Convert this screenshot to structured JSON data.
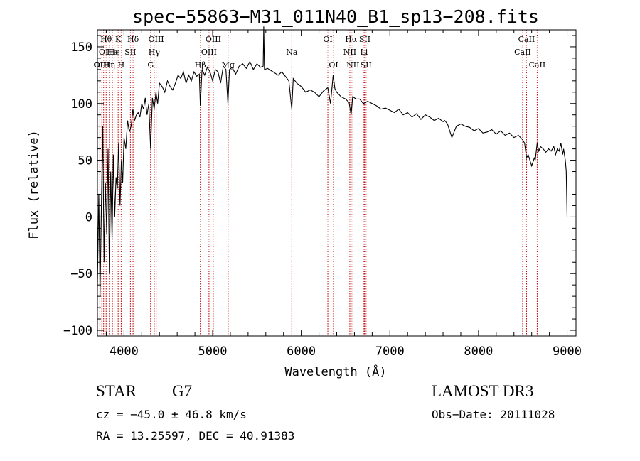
{
  "chart_data": {
    "type": "line",
    "title": "spec−55863−M31_011N40_B1_sp13−208.fits",
    "xlabel": "Wavelength (Å)",
    "ylabel": "Flux (relative)",
    "xlim": [
      3700,
      9100
    ],
    "ylim": [
      -105,
      165
    ],
    "x_ticks": [
      4000,
      5000,
      6000,
      7000,
      8000,
      9000
    ],
    "x_tick_labels": [
      "4000",
      "5000",
      "6000",
      "7000",
      "8000",
      "9000"
    ],
    "y_ticks": [
      -100,
      -50,
      0,
      50,
      100,
      150
    ],
    "y_tick_labels": [
      "−100",
      "−50",
      "0",
      "50",
      "100",
      "150"
    ],
    "series": [
      {
        "name": "flux",
        "x": [
          3700,
          3715,
          3730,
          3745,
          3760,
          3775,
          3790,
          3805,
          3820,
          3835,
          3850,
          3865,
          3880,
          3895,
          3910,
          3925,
          3940,
          3955,
          3970,
          3985,
          4000,
          4020,
          4040,
          4060,
          4080,
          4100,
          4120,
          4140,
          4160,
          4180,
          4200,
          4220,
          4240,
          4260,
          4280,
          4300,
          4320,
          4340,
          4360,
          4380,
          4400,
          4430,
          4460,
          4490,
          4520,
          4550,
          4580,
          4610,
          4640,
          4670,
          4700,
          4730,
          4760,
          4790,
          4820,
          4850,
          4861,
          4880,
          4910,
          4940,
          4970,
          5000,
          5030,
          5060,
          5090,
          5120,
          5150,
          5172,
          5190,
          5220,
          5260,
          5300,
          5340,
          5380,
          5420,
          5460,
          5500,
          5540,
          5570,
          5577,
          5585,
          5620,
          5660,
          5700,
          5740,
          5780,
          5820,
          5860,
          5893,
          5910,
          5950,
          6000,
          6050,
          6100,
          6150,
          6200,
          6250,
          6300,
          6330,
          6360,
          6380,
          6400,
          6450,
          6500,
          6540,
          6563,
          6580,
          6620,
          6660,
          6700,
          6750,
          6800,
          6850,
          6900,
          6950,
          7000,
          7050,
          7100,
          7150,
          7200,
          7250,
          7300,
          7350,
          7400,
          7450,
          7500,
          7550,
          7600,
          7620,
          7650,
          7700,
          7750,
          7800,
          7850,
          7900,
          7950,
          8000,
          8050,
          8100,
          8150,
          8200,
          8250,
          8300,
          8350,
          8400,
          8450,
          8498,
          8520,
          8542,
          8560,
          8600,
          8630,
          8640,
          8662,
          8680,
          8700,
          8730,
          8760,
          8790,
          8820,
          8850,
          8870,
          8890,
          8910,
          8930,
          8950,
          8960,
          8970,
          8980,
          8990,
          9000
        ],
        "y": [
          -60,
          20,
          -70,
          10,
          80,
          -40,
          30,
          -15,
          60,
          -50,
          40,
          -20,
          55,
          0,
          35,
          25,
          65,
          10,
          50,
          30,
          70,
          60,
          85,
          75,
          80,
          95,
          85,
          90,
          92,
          88,
          100,
          95,
          105,
          90,
          100,
          60,
          105,
          95,
          110,
          100,
          118,
          115,
          110,
          120,
          115,
          112,
          118,
          125,
          122,
          128,
          118,
          125,
          120,
          128,
          124,
          126,
          98,
          130,
          125,
          132,
          128,
          120,
          130,
          128,
          118,
          133,
          130,
          100,
          130,
          132,
          126,
          133,
          135,
          131,
          137,
          130,
          135,
          132,
          133,
          168,
          130,
          131,
          129,
          127,
          125,
          128,
          124,
          120,
          95,
          122,
          118,
          115,
          110,
          112,
          110,
          106,
          111,
          114,
          100,
          125,
          113,
          110,
          106,
          104,
          101,
          90,
          106,
          104,
          104,
          100,
          102,
          100,
          98,
          95,
          96,
          94,
          92,
          95,
          90,
          92,
          88,
          91,
          86,
          90,
          88,
          85,
          87,
          84,
          85,
          82,
          70,
          80,
          82,
          80,
          79,
          76,
          78,
          74,
          75,
          77,
          73,
          76,
          72,
          74,
          70,
          72,
          68,
          65,
          52,
          55,
          45,
          52,
          50,
          65,
          58,
          62,
          60,
          57,
          60,
          58,
          62,
          55,
          60,
          58,
          65,
          55,
          60,
          55,
          50,
          40,
          0
        ]
      }
    ],
    "lines": [
      {
        "x": 3727,
        "label": "OII",
        "row": 2
      },
      {
        "x": 3750,
        "label": "OIII",
        "row": 2
      },
      {
        "x": 3770,
        "label": "OI",
        "row": 1
      },
      {
        "x": 3798,
        "label": "Hθ",
        "row": 0
      },
      {
        "x": 3835,
        "label": "Hη",
        "row": 2
      },
      {
        "x": 3869,
        "label": "He",
        "row": 1
      },
      {
        "x": 3889,
        "label": "He",
        "row": 1
      },
      {
        "x": 3934,
        "label": "K",
        "row": 0
      },
      {
        "x": 3968,
        "label": "H",
        "row": 2
      },
      {
        "x": 4072,
        "label": "SII",
        "row": 1
      },
      {
        "x": 4102,
        "label": "Hδ",
        "row": 0
      },
      {
        "x": 4300,
        "label": "G",
        "row": 2
      },
      {
        "x": 4341,
        "label": "Hγ",
        "row": 1
      },
      {
        "x": 4363,
        "label": "OIII",
        "row": 0
      },
      {
        "x": 4861,
        "label": "Hβ",
        "row": 2
      },
      {
        "x": 4959,
        "label": "OIII",
        "row": 1
      },
      {
        "x": 5007,
        "label": "OIII",
        "row": 0
      },
      {
        "x": 5175,
        "label": "Mg",
        "row": 2
      },
      {
        "x": 5893,
        "label": "Na",
        "row": 1
      },
      {
        "x": 6300,
        "label": "OI",
        "row": 0
      },
      {
        "x": 6364,
        "label": "OI",
        "row": 2
      },
      {
        "x": 6548,
        "label": "NII",
        "row": 1
      },
      {
        "x": 6563,
        "label": "Hα",
        "row": 0
      },
      {
        "x": 6583,
        "label": "NII",
        "row": 2
      },
      {
        "x": 6708,
        "label": "Li",
        "row": 1
      },
      {
        "x": 6717,
        "label": "SII",
        "row": 0
      },
      {
        "x": 6731,
        "label": "SII",
        "row": 2
      },
      {
        "x": 8498,
        "label": "CaII",
        "row": 1
      },
      {
        "x": 8542,
        "label": "CaII",
        "row": 0
      },
      {
        "x": 8662,
        "label": "CaII",
        "row": 2
      }
    ]
  },
  "info": {
    "class": "STAR",
    "subclass": "G7",
    "survey": "LAMOST DR3",
    "cz": "cz = −45.0 ± 46.8 km/s",
    "obs_date": "Obs−Date: 20111028",
    "radec": "RA =  13.25597, DEC =  40.91383"
  },
  "colors": {
    "spectrum": "#000000",
    "lines": "#c00000"
  }
}
